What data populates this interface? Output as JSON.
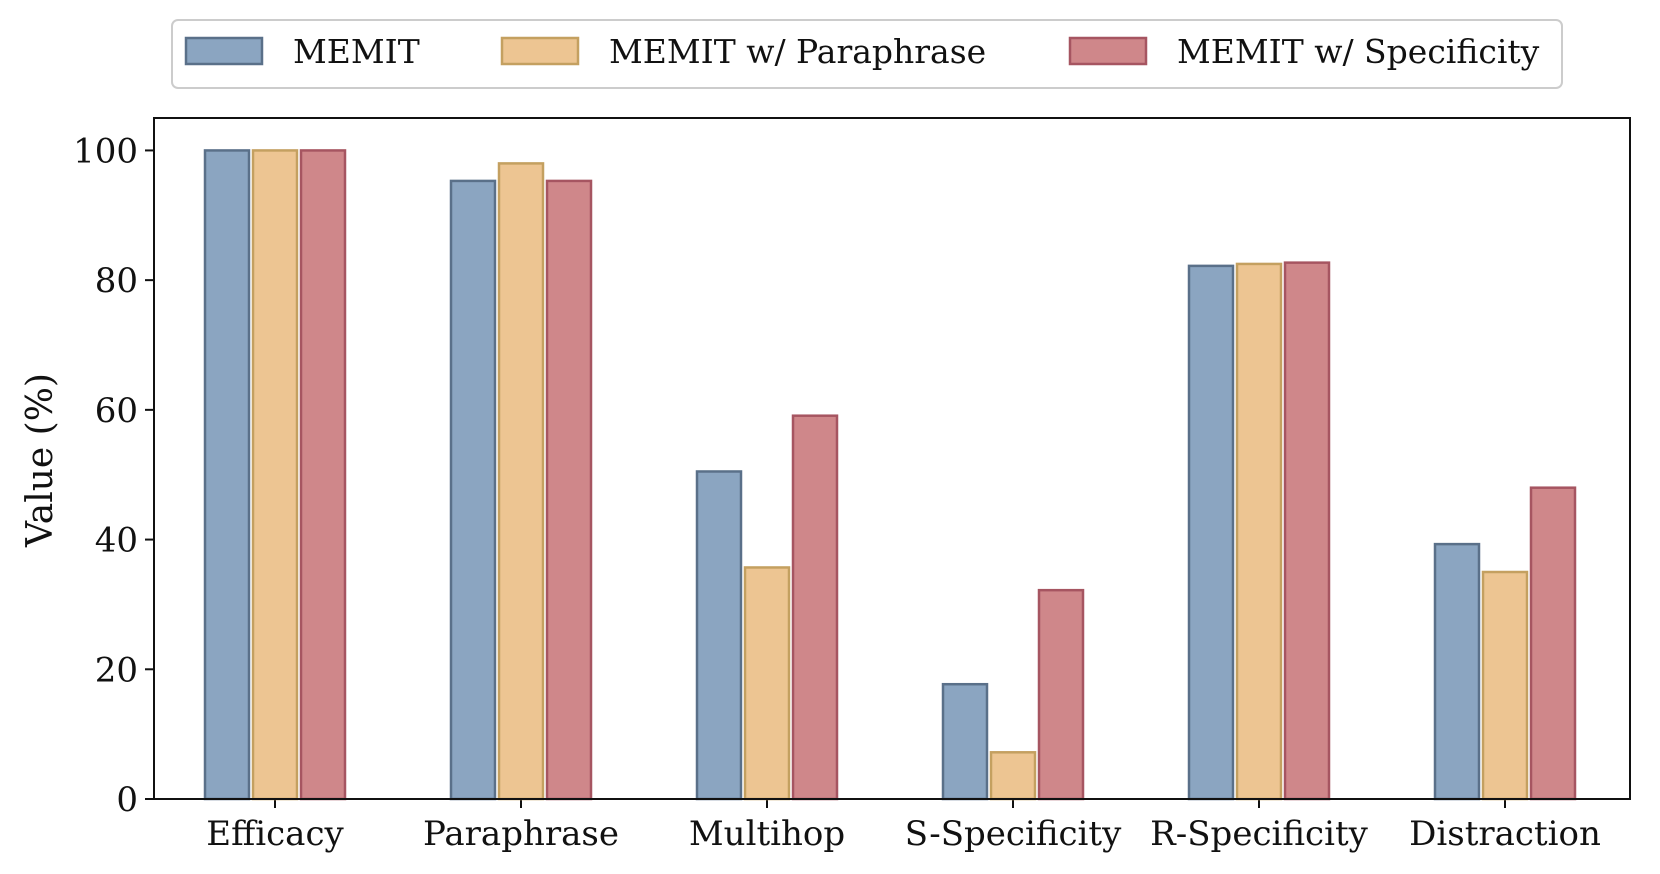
{
  "chart_data": {
    "type": "bar",
    "title": "",
    "xlabel": "",
    "ylabel": "Value (%)",
    "ylim": [
      0,
      105
    ],
    "yticks": [
      0,
      20,
      40,
      60,
      80,
      100
    ],
    "grid": false,
    "legend_position": "top-center",
    "categories": [
      "Efficacy",
      "Paraphrase",
      "Multihop",
      "S-Specificity",
      "R-Specificity",
      "Distraction"
    ],
    "series": [
      {
        "name": "MEMIT",
        "values": [
          100.0,
          95.3,
          50.5,
          17.7,
          82.2,
          39.3
        ],
        "fill": "#8ba5c1",
        "stroke": "#5a7089"
      },
      {
        "name": "MEMIT w/ Paraphrase",
        "values": [
          100.0,
          98.0,
          35.7,
          7.2,
          82.5,
          35.0
        ],
        "fill": "#edc592",
        "stroke": "#c4a060"
      },
      {
        "name": "MEMIT w/ Specificity",
        "values": [
          100.0,
          95.3,
          59.1,
          32.2,
          82.7,
          48.0
        ],
        "fill": "#cf878a",
        "stroke": "#a65561"
      }
    ]
  }
}
